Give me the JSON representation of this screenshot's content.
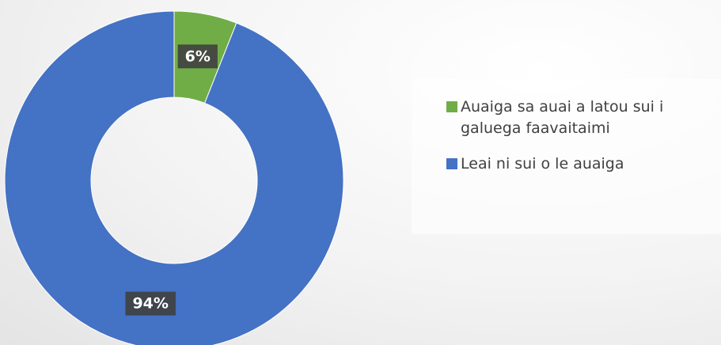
{
  "chart_data": {
    "type": "donut",
    "categories": [
      "Auaiga sa auai a latou sui i galuega faavaitaimi",
      "Leai ni sui o le auaiga"
    ],
    "values": [
      6,
      94
    ],
    "value_labels": [
      "6%",
      "94%"
    ],
    "colors": [
      "#70ad47",
      "#4472c4"
    ],
    "legend": "right"
  }
}
